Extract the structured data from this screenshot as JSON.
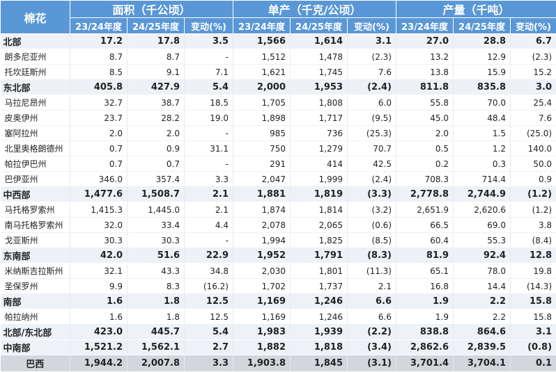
{
  "header": {
    "corner": "棉花",
    "groups": [
      "面积（千公顷）",
      "单产（千克/公顷）",
      "产量（千吨）"
    ],
    "subheaders": [
      "23/24年度",
      "24/25年度",
      "变动(%)",
      "23/24年度",
      "24/25年度",
      "变动(%)",
      "23/24年度",
      "24/25年度",
      "变动(%)"
    ]
  },
  "rows": [
    {
      "type": "region",
      "cells": [
        "北部",
        "17.2",
        "17.8",
        "3.5",
        "1,566",
        "1,614",
        "3.1",
        "27.0",
        "28.8",
        "6.7"
      ]
    },
    {
      "type": "normal",
      "cells": [
        "朗多尼亚州",
        "8.7",
        "8.7",
        "-",
        "1,512",
        "1,478",
        "(2.3)",
        "13.2",
        "12.9",
        "(2.3)"
      ]
    },
    {
      "type": "normal",
      "cells": [
        "托坎廷斯州",
        "8.5",
        "9.1",
        "7.1",
        "1,621",
        "1,745",
        "7.6",
        "13.8",
        "15.9",
        "15.2"
      ]
    },
    {
      "type": "region",
      "cells": [
        "东北部",
        "405.8",
        "427.9",
        "5.4",
        "2,000",
        "1,953",
        "(2.4)",
        "811.8",
        "835.8",
        "3.0"
      ]
    },
    {
      "type": "normal",
      "cells": [
        "马拉尼昂州",
        "32.7",
        "38.7",
        "18.5",
        "1,705",
        "1,808",
        "6.0",
        "55.8",
        "70.0",
        "25.4"
      ]
    },
    {
      "type": "normal",
      "cells": [
        "皮奥伊州",
        "23.7",
        "28.2",
        "19.0",
        "1,898",
        "1,717",
        "(9.5)",
        "45.0",
        "48.4",
        "7.6"
      ]
    },
    {
      "type": "normal",
      "cells": [
        "塞阿拉州",
        "2.0",
        "2.0",
        "-",
        "985",
        "736",
        "(25.3)",
        "2.0",
        "1.5",
        "(25.0)"
      ]
    },
    {
      "type": "normal",
      "cells": [
        "北里奥格朗德州",
        "0.7",
        "0.9",
        "31.1",
        "750",
        "1,279",
        "70.7",
        "0.5",
        "1.2",
        "140.0"
      ]
    },
    {
      "type": "normal",
      "cells": [
        "帕拉伊巴州",
        "0.7",
        "0.7",
        "-",
        "291",
        "414",
        "42.5",
        "0.2",
        "0.3",
        "50.0"
      ]
    },
    {
      "type": "normal",
      "cells": [
        "巴伊亚州",
        "346.0",
        "357.4",
        "3.3",
        "2,047",
        "1,999",
        "(2.4)",
        "708.3",
        "714.4",
        "0.9"
      ]
    },
    {
      "type": "region",
      "cells": [
        "中西部",
        "1,477.6",
        "1,508.7",
        "2.1",
        "1,881",
        "1,819",
        "(3.3)",
        "2,778.8",
        "2,744.9",
        "(1.2)"
      ]
    },
    {
      "type": "normal",
      "cells": [
        "马托格罗索州",
        "1,415.3",
        "1,445.0",
        "2.1",
        "1,874",
        "1,814",
        "(3.2)",
        "2,651.9",
        "2,620.6",
        "(1.2)"
      ]
    },
    {
      "type": "normal",
      "cells": [
        "南马托格罗索州",
        "32.0",
        "33.4",
        "4.4",
        "2,078",
        "2,065",
        "(0.6)",
        "66.5",
        "69.0",
        "3.8"
      ]
    },
    {
      "type": "normal",
      "cells": [
        "戈亚斯州",
        "30.3",
        "30.3",
        "-",
        "1,994",
        "1,825",
        "(8.5)",
        "60.4",
        "55.3",
        "(8.4)"
      ]
    },
    {
      "type": "region",
      "cells": [
        "东南部",
        "42.0",
        "51.6",
        "22.9",
        "1,952",
        "1,791",
        "(8.3)",
        "81.9",
        "92.4",
        "12.8"
      ]
    },
    {
      "type": "normal",
      "cells": [
        "米纳斯吉拉斯州",
        "32.1",
        "43.3",
        "34.8",
        "2,030",
        "1,801",
        "(11.3)",
        "65.1",
        "78.0",
        "19.8"
      ]
    },
    {
      "type": "normal",
      "cells": [
        "圣保罗州",
        "9.9",
        "8.3",
        "(16.2)",
        "1,702",
        "1,737",
        "2.1",
        "16.8",
        "14.4",
        "(14.3)"
      ]
    },
    {
      "type": "region",
      "cells": [
        "南部",
        "1.6",
        "1.8",
        "12.5",
        "1,169",
        "1,246",
        "6.6",
        "1.9",
        "2.2",
        "15.8"
      ]
    },
    {
      "type": "normal",
      "cells": [
        "帕拉纳州",
        "1.6",
        "1.8",
        "12.5",
        "1,169",
        "1,246",
        "6.6",
        "1.9",
        "2.2",
        "15.8"
      ]
    },
    {
      "type": "region",
      "cells": [
        "北部/东北部",
        "423.0",
        "445.7",
        "5.4",
        "1,983",
        "1,939",
        "(2.2)",
        "838.8",
        "864.6",
        "3.1"
      ]
    },
    {
      "type": "region",
      "cells": [
        "中南部",
        "1,521.2",
        "1,562.1",
        "2.7",
        "1,882",
        "1,818",
        "(3.4)",
        "2,862.6",
        "2,839.5",
        "(0.8)"
      ]
    },
    {
      "type": "total",
      "cells": [
        "巴西",
        "1,944.2",
        "2,007.8",
        "3.3",
        "1,903.8",
        "1,845",
        "(3.1)",
        "3,701.4",
        "3,704.1",
        "0.1"
      ]
    }
  ]
}
